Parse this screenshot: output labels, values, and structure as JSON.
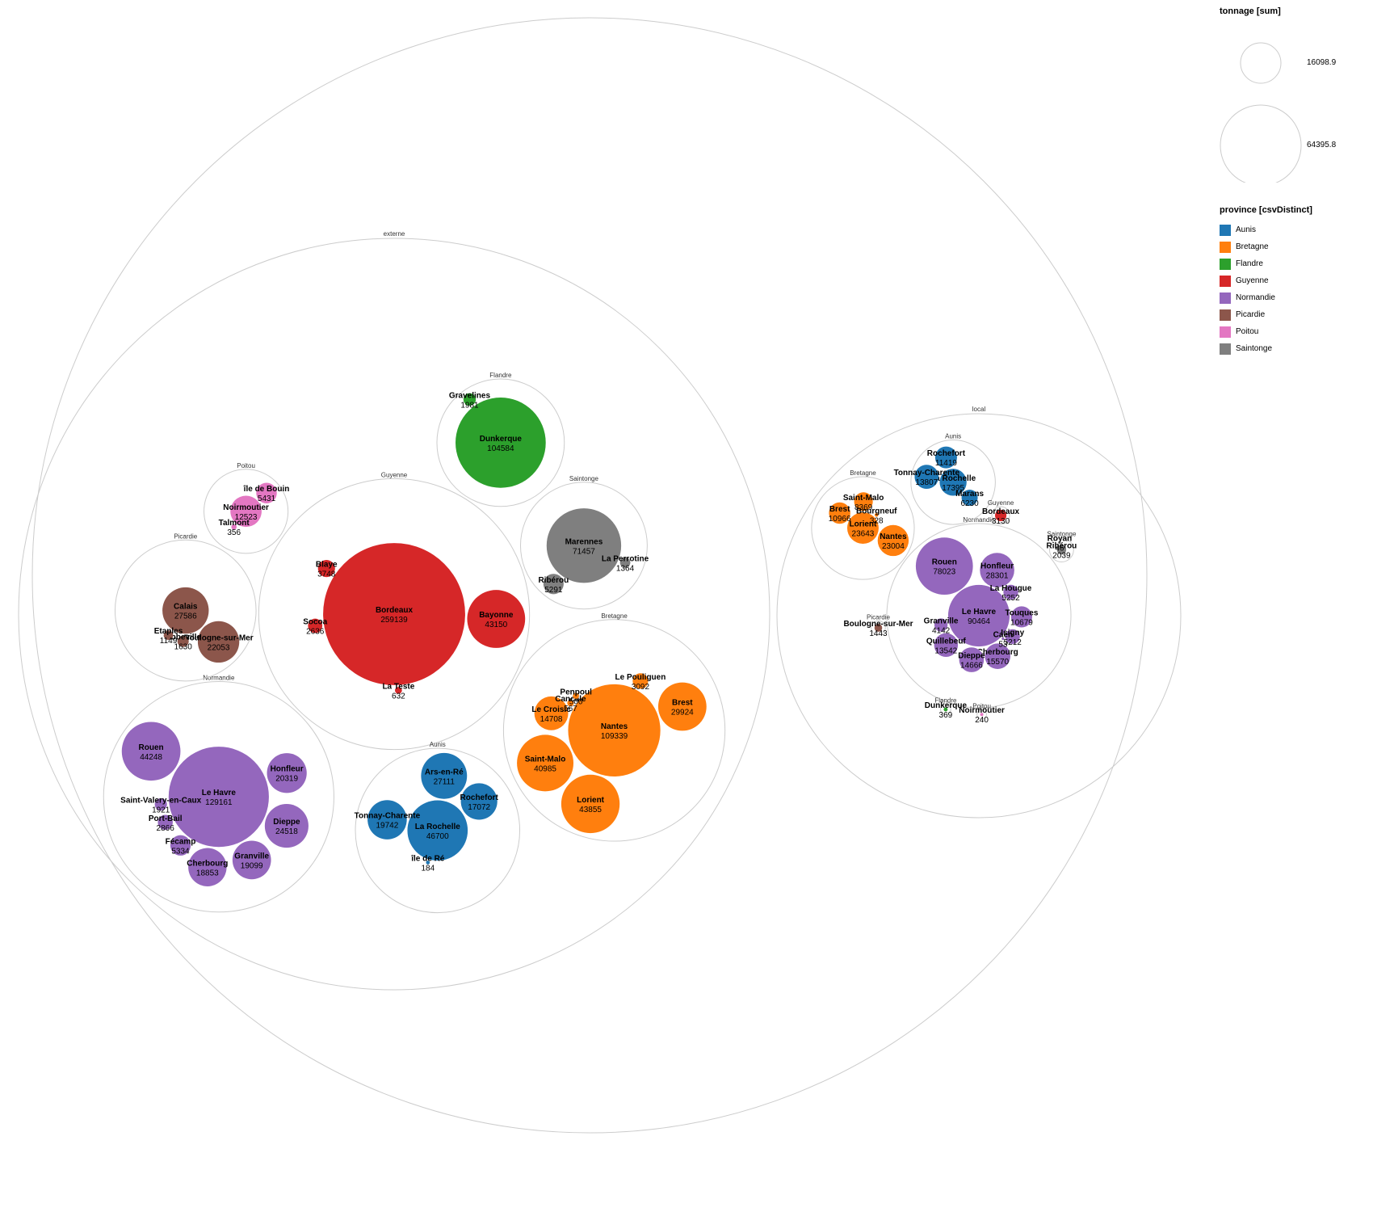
{
  "chart_data": {
    "type": "packed-bubble",
    "size_legend": {
      "title": "tonnage [sum]",
      "items": [
        {
          "value": 16098.9,
          "label": "16098.9"
        },
        {
          "value": 64395.8,
          "label": "64395.8"
        }
      ]
    },
    "color_legend": {
      "title": "province [csvDistinct]",
      "items": [
        {
          "name": "Aunis",
          "color": "#1f77b4"
        },
        {
          "name": "Bretagne",
          "color": "#ff7f0e"
        },
        {
          "name": "Flandre",
          "color": "#2ca02c"
        },
        {
          "name": "Guyenne",
          "color": "#d62728"
        },
        {
          "name": "Normandie",
          "color": "#9467bd"
        },
        {
          "name": "Picardie",
          "color": "#8c564b"
        },
        {
          "name": "Poitou",
          "color": "#e377c2"
        },
        {
          "name": "Saintonge",
          "color": "#7f7f7f"
        }
      ]
    },
    "groups": [
      {
        "name": "externe",
        "provinces": [
          {
            "name": "Guyenne",
            "ports": [
              {
                "name": "Bordeaux",
                "value": 259139
              },
              {
                "name": "Bayonne",
                "value": 43150
              },
              {
                "name": "Blaye",
                "value": 3748
              },
              {
                "name": "Socoa",
                "value": 2636
              },
              {
                "name": "La Teste",
                "value": 632
              }
            ]
          },
          {
            "name": "Picardie",
            "ports": [
              {
                "name": "Calais",
                "value": 27586
              },
              {
                "name": "Boulogne-sur-Mer",
                "value": 22053
              },
              {
                "name": "Abbeville",
                "value": 1630
              },
              {
                "name": "Etaples",
                "value": 1149
              }
            ]
          },
          {
            "name": "Saintonge",
            "ports": [
              {
                "name": "Marennes",
                "value": 71457
              },
              {
                "name": "Ribérou",
                "value": 5291
              },
              {
                "name": "La Perrotine",
                "value": 1364
              }
            ]
          },
          {
            "name": "Aunis",
            "ports": [
              {
                "name": "La Rochelle",
                "value": 46700
              },
              {
                "name": "Ars-en-Ré",
                "value": 27111
              },
              {
                "name": "Tonnay-Charente",
                "value": 19742
              },
              {
                "name": "Rochefort",
                "value": 17072
              },
              {
                "name": "île de Ré",
                "value": 184
              }
            ]
          },
          {
            "name": "Bretagne",
            "ports": [
              {
                "name": "Nantes",
                "value": 109339
              },
              {
                "name": "Lorient",
                "value": 43855
              },
              {
                "name": "Saint-Malo",
                "value": 40985
              },
              {
                "name": "Brest",
                "value": 29924
              },
              {
                "name": "Le Croisic",
                "value": 14708
              },
              {
                "name": "Le Pouliguen",
                "value": 3092
              },
              {
                "name": "Cancale",
                "value": 567
              },
              {
                "name": "Penpoul",
                "value": 500
              }
            ]
          },
          {
            "name": "Poitou",
            "ports": [
              {
                "name": "Noirmoutier",
                "value": 12523
              },
              {
                "name": "île de Bouin",
                "value": 5431
              },
              {
                "name": "Talmont",
                "value": 356
              }
            ]
          },
          {
            "name": "Flandre",
            "ports": [
              {
                "name": "Dunkerque",
                "value": 104584
              },
              {
                "name": "Gravelines",
                "value": 1981
              }
            ]
          },
          {
            "name": "Normandie",
            "ports": [
              {
                "name": "Le Havre",
                "value": 129161
              },
              {
                "name": "Rouen",
                "value": 44248
              },
              {
                "name": "Dieppe",
                "value": 24518
              },
              {
                "name": "Honfleur",
                "value": 20319
              },
              {
                "name": "Granville",
                "value": 19099
              },
              {
                "name": "Cherbourg",
                "value": 18853
              },
              {
                "name": "Fécamp",
                "value": 5334
              },
              {
                "name": "Port-Bail",
                "value": 2866
              },
              {
                "name": "Saint-Valery-en-Caux",
                "value": 1921
              }
            ]
          }
        ]
      },
      {
        "name": "local",
        "provinces": [
          {
            "name": "Poitou",
            "ports": [
              {
                "name": "Noirmoutier",
                "value": 240
              }
            ]
          },
          {
            "name": "Guyenne",
            "ports": [
              {
                "name": "Bordeaux",
                "value": 3130
              }
            ]
          },
          {
            "name": "Picardie",
            "ports": [
              {
                "name": "Boulogne-sur-Mer",
                "value": 1443
              }
            ]
          },
          {
            "name": "Aunis",
            "ports": [
              {
                "name": "La Rochelle",
                "value": 17395
              },
              {
                "name": "Tonnay-Charente",
                "value": 13807
              },
              {
                "name": "Rochefort",
                "value": 11419
              },
              {
                "name": "Marans",
                "value": 6230
              }
            ]
          },
          {
            "name": "Bretagne",
            "ports": [
              {
                "name": "Lorient",
                "value": 23643
              },
              {
                "name": "Nantes",
                "value": 23004
              },
              {
                "name": "Brest",
                "value": 10966
              },
              {
                "name": "Saint-Malo",
                "value": 8369
              },
              {
                "name": "Bourgneuf",
                "value": 328
              }
            ]
          },
          {
            "name": "Flandre",
            "ports": [
              {
                "name": "Dunkerque",
                "value": 369
              }
            ]
          },
          {
            "name": "Saintonge",
            "ports": [
              {
                "name": "Ribérou",
                "value": 2039
              },
              {
                "name": "Royan",
                "value": 46
              }
            ]
          },
          {
            "name": "Normandie",
            "ports": [
              {
                "name": "Le Havre",
                "value": 90464
              },
              {
                "name": "Rouen",
                "value": 78023
              },
              {
                "name": "Honfleur",
                "value": 28301
              },
              {
                "name": "Cherbourg",
                "value": 15570
              },
              {
                "name": "Dieppe",
                "value": 14666
              },
              {
                "name": "Quillebeuf",
                "value": 13542
              },
              {
                "name": "Touques",
                "value": 10679
              },
              {
                "name": "La Hougue",
                "value": 5252
              },
              {
                "name": "Isigny",
                "value": 5212
              },
              {
                "name": "Granville",
                "value": 4142
              },
              {
                "name": "Caen",
                "value": 53
              }
            ]
          }
        ]
      }
    ]
  }
}
